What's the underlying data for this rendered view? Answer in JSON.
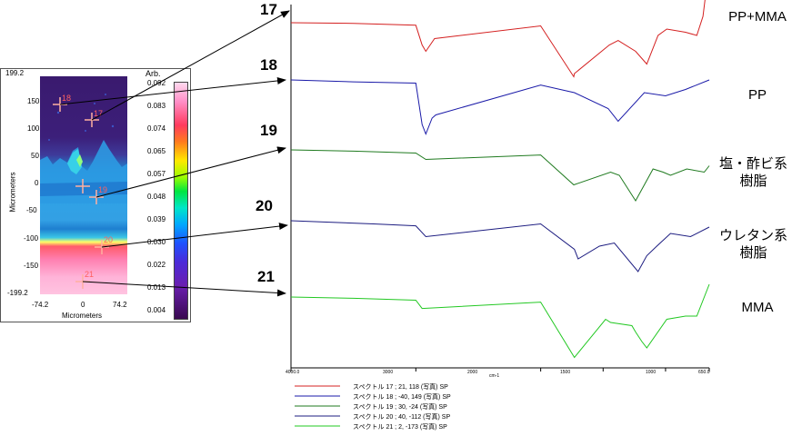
{
  "map": {
    "y_axis_label": "Micrometers",
    "x_axis_label": "Micrometers",
    "y_ticks": [
      "199.2",
      "150",
      "100",
      "50",
      "0",
      "-50",
      "-100",
      "-150",
      "-199.2"
    ],
    "x_ticks": [
      "-74.2",
      "0",
      "74.2"
    ],
    "points": [
      "18",
      "17",
      "19",
      "20",
      "21"
    ],
    "colorbar_title": "Arb.",
    "colorbar_ticks": [
      "0.092",
      "0.083",
      "0.074",
      "0.065",
      "0.057",
      "0.048",
      "0.039",
      "0.030",
      "0.022",
      "0.013",
      "0.004"
    ]
  },
  "spectra_numbers": [
    "17",
    "18",
    "19",
    "20",
    "21"
  ],
  "material_labels": [
    {
      "line1": "PP+MMA",
      "line2": ""
    },
    {
      "line1": "PP",
      "line2": ""
    },
    {
      "line1": "塩・酢ビ系",
      "line2": "樹脂"
    },
    {
      "line1": "ウレタン系",
      "line2": "樹脂"
    },
    {
      "line1": "MMA",
      "line2": ""
    }
  ],
  "x_ticks": [
    "4000.0",
    "3000",
    "2000",
    "1500",
    "1000",
    "650.0"
  ],
  "x_unit": "cm-1",
  "legend": [
    "スペクトル 17 ; 21, 118 (写真)  SP",
    "スペクトル 18 ; -40, 149 (写真)  SP",
    "スペクトル 19 ; 30, -24 (写真)  SP",
    "スペクトル 20 ; 40, -112 (写真)  SP",
    "スペクトル 21 ; 2, -173 (写真)  SP"
  ],
  "colors": {
    "spectrum_17": "#d42020",
    "spectrum_18": "#1a1aa8",
    "spectrum_19": "#1f7a1f",
    "spectrum_20": "#1c1c80",
    "spectrum_21": "#22c822",
    "arrow": "#000000",
    "crosshair": "#ffb0a0"
  },
  "chart_data": {
    "type": "line",
    "title": "",
    "xlabel": "cm-1",
    "ylabel": "",
    "xlim": [
      4000,
      650
    ],
    "x_ticks": [
      4000,
      3000,
      2000,
      1500,
      1000,
      650
    ],
    "series": [
      {
        "name": "スペクトル 17 ; 21, 118 (写真)  SP",
        "label": "PP+MMA",
        "points": [
          [
            4000,
            0.1
          ],
          [
            3500,
            0.11
          ],
          [
            3000,
            0.14
          ],
          [
            2950,
            0.45
          ],
          [
            2920,
            0.55
          ],
          [
            2850,
            0.35
          ],
          [
            2000,
            0.15
          ],
          [
            1735,
            0.95
          ],
          [
            1730,
            0.9
          ],
          [
            1450,
            0.45
          ],
          [
            1380,
            0.38
          ],
          [
            1240,
            0.55
          ],
          [
            1150,
            0.75
          ],
          [
            1060,
            0.3
          ],
          [
            990,
            0.2
          ],
          [
            840,
            0.25
          ],
          [
            750,
            0.3
          ],
          [
            700,
            0.0
          ],
          [
            650,
            -0.8
          ]
        ]
      },
      {
        "name": "スペクトル 18 ; -40, 149 (写真)  SP",
        "label": "PP",
        "points": [
          [
            4000,
            0.0
          ],
          [
            3500,
            0.03
          ],
          [
            3000,
            0.05
          ],
          [
            2950,
            0.7
          ],
          [
            2920,
            0.85
          ],
          [
            2870,
            0.6
          ],
          [
            2840,
            0.55
          ],
          [
            2000,
            0.08
          ],
          [
            1730,
            0.2
          ],
          [
            1460,
            0.45
          ],
          [
            1380,
            0.65
          ],
          [
            1170,
            0.2
          ],
          [
            1000,
            0.25
          ],
          [
            840,
            0.15
          ],
          [
            650,
            0.0
          ]
        ]
      },
      {
        "name": "スペクトル 19 ; 30, -24 (写真)  SP",
        "label": "塩・酢ビ系樹脂",
        "points": [
          [
            4000,
            0.0
          ],
          [
            3500,
            0.02
          ],
          [
            3000,
            0.05
          ],
          [
            2920,
            0.15
          ],
          [
            2000,
            0.08
          ],
          [
            1735,
            0.55
          ],
          [
            1440,
            0.35
          ],
          [
            1370,
            0.4
          ],
          [
            1240,
            0.8
          ],
          [
            1100,
            0.3
          ],
          [
            1020,
            0.35
          ],
          [
            960,
            0.4
          ],
          [
            830,
            0.3
          ],
          [
            690,
            0.35
          ],
          [
            650,
            0.25
          ]
        ]
      },
      {
        "name": "スペクトル 20 ; 40, -112 (写真)  SP",
        "label": "ウレタン系樹脂",
        "points": [
          [
            4000,
            0.0
          ],
          [
            3340,
            0.05
          ],
          [
            3000,
            0.08
          ],
          [
            2920,
            0.25
          ],
          [
            2000,
            0.05
          ],
          [
            1730,
            0.45
          ],
          [
            1700,
            0.6
          ],
          [
            1530,
            0.4
          ],
          [
            1410,
            0.35
          ],
          [
            1220,
            0.8
          ],
          [
            1150,
            0.55
          ],
          [
            1070,
            0.4
          ],
          [
            960,
            0.2
          ],
          [
            800,
            0.25
          ],
          [
            650,
            0.1
          ]
        ]
      },
      {
        "name": "スペクトル 21 ; 2, -173 (写真)  SP",
        "label": "MMA",
        "points": [
          [
            4000,
            0.0
          ],
          [
            3500,
            0.02
          ],
          [
            3000,
            0.05
          ],
          [
            2950,
            0.18
          ],
          [
            2000,
            0.08
          ],
          [
            1730,
            0.95
          ],
          [
            1480,
            0.35
          ],
          [
            1440,
            0.4
          ],
          [
            1270,
            0.45
          ],
          [
            1240,
            0.55
          ],
          [
            1190,
            0.7
          ],
          [
            1150,
            0.8
          ],
          [
            990,
            0.35
          ],
          [
            840,
            0.3
          ],
          [
            750,
            0.3
          ],
          [
            650,
            -0.2
          ]
        ]
      }
    ]
  }
}
